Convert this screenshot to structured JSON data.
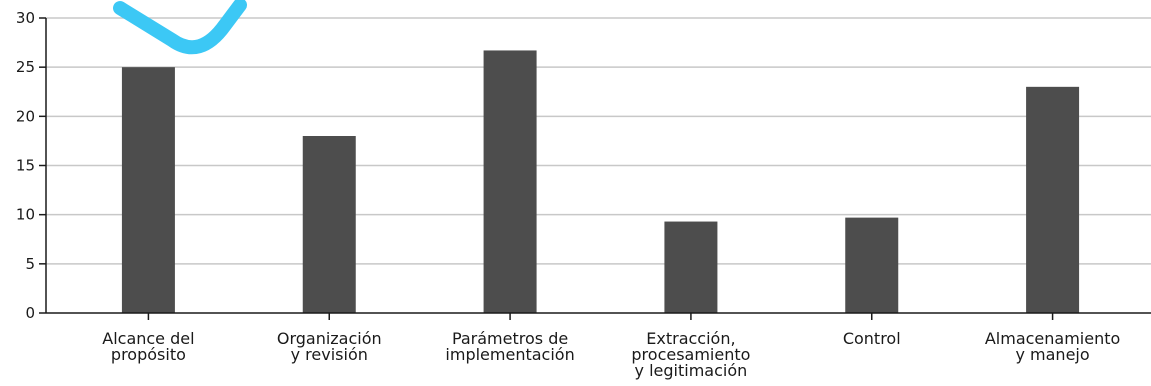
{
  "chart_data": {
    "type": "bar",
    "title": "",
    "xlabel": "",
    "ylabel": "",
    "ylim": [
      0,
      30
    ],
    "yticks": [
      0,
      5,
      10,
      15,
      20,
      25,
      30
    ],
    "grid": true,
    "categories": [
      [
        "Alcance del",
        "propósito"
      ],
      [
        "Organización",
        "y revisión"
      ],
      [
        "Parámetros de",
        "implementación"
      ],
      [
        "Extracción,",
        "procesamiento",
        "y legitimación"
      ],
      [
        "Control"
      ],
      [
        "Almacenamiento",
        "y manejo"
      ]
    ],
    "values": [
      25,
      18,
      26.7,
      9.3,
      9.7,
      23
    ],
    "colors": {
      "bar": "#4d4d4d",
      "grid": "#c8c8c8",
      "axis": "#1a1a1a",
      "watermark": "#3cc8f5"
    }
  }
}
